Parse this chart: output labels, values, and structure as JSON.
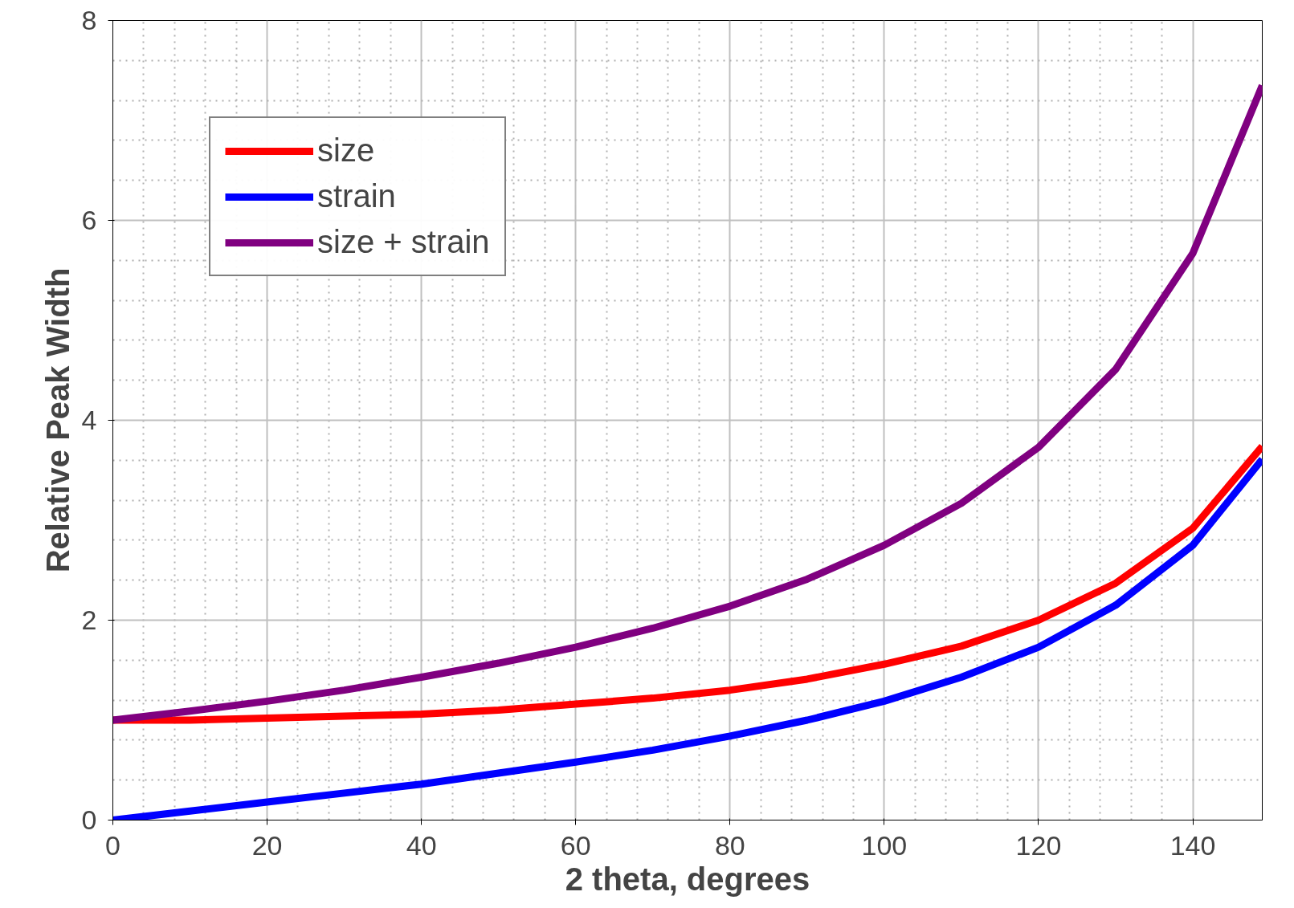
{
  "chart_data": {
    "type": "line",
    "xlabel": "2 theta, degrees",
    "ylabel": "Relative Peak Width",
    "x": [
      0,
      10,
      20,
      30,
      40,
      50,
      60,
      70,
      80,
      90,
      100,
      110,
      120,
      130,
      140,
      149
    ],
    "series": [
      {
        "name": "size",
        "color": "#ff0000",
        "values": [
          1,
          1.0,
          1.02,
          1.04,
          1.06,
          1.1,
          1.16,
          1.22,
          1.3,
          1.41,
          1.56,
          1.74,
          2.0,
          2.37,
          2.92,
          3.74
        ]
      },
      {
        "name": "strain",
        "color": "#0000ff",
        "values": [
          0,
          0.09,
          0.18,
          0.27,
          0.36,
          0.47,
          0.58,
          0.7,
          0.84,
          1.0,
          1.19,
          1.43,
          1.73,
          2.15,
          2.75,
          3.61
        ]
      },
      {
        "name": "size + strain",
        "color": "#800080",
        "values": [
          1,
          1.09,
          1.19,
          1.3,
          1.43,
          1.57,
          1.73,
          1.92,
          2.14,
          2.41,
          2.75,
          3.17,
          3.73,
          4.51,
          5.67,
          7.35
        ]
      }
    ],
    "xlim": [
      0,
      149
    ],
    "ylim": [
      0,
      8
    ],
    "xticks": [
      0,
      20,
      40,
      60,
      80,
      100,
      120,
      140
    ],
    "yticks": [
      0,
      2,
      4,
      6,
      8
    ],
    "grid": true,
    "legend": "top left",
    "marker": "none",
    "line_style": "solid"
  }
}
